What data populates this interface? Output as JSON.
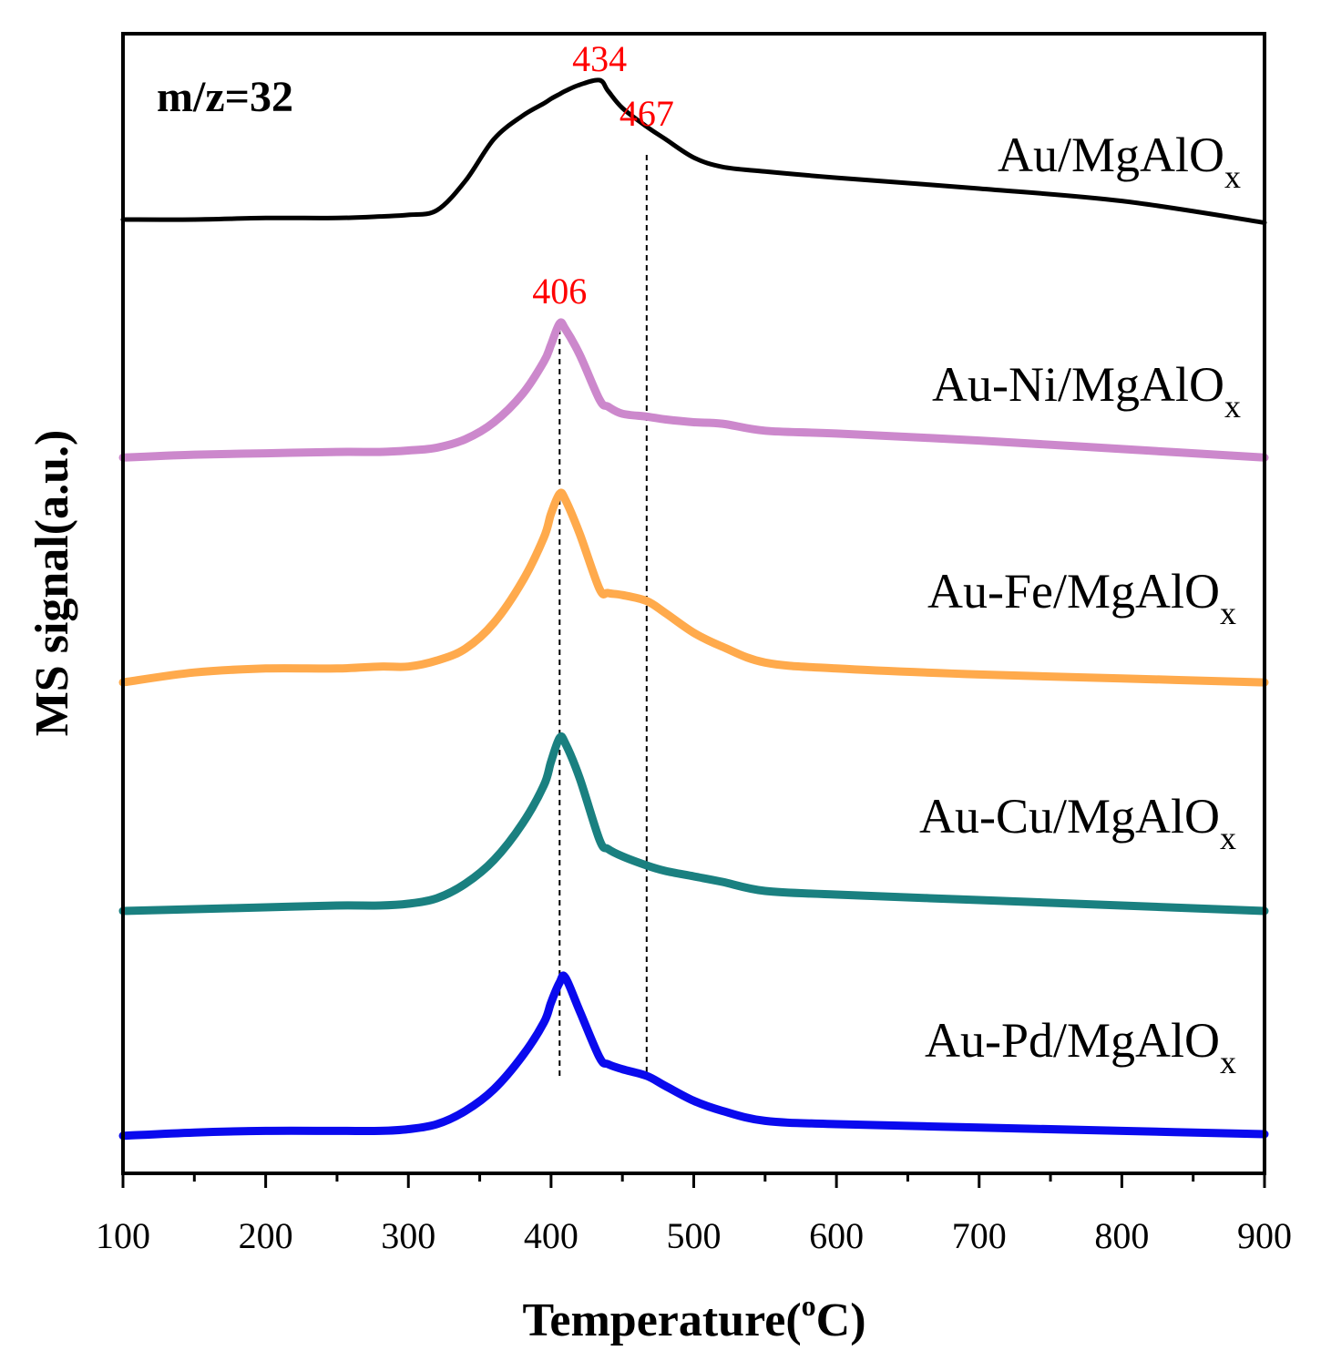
{
  "chart_data": {
    "type": "line",
    "panel_label": "m/z=32",
    "xlabel": {
      "main": "Temperature(",
      "sup": "o",
      "tail": "C)"
    },
    "ylabel": "MS signal(a.u.)",
    "xlim": [
      100,
      900
    ],
    "xticks": [
      "100",
      "200",
      "300",
      "400",
      "500",
      "600",
      "700",
      "800",
      "900"
    ],
    "x": [
      100,
      150,
      200,
      250,
      280,
      300,
      320,
      340,
      360,
      380,
      395,
      400,
      406,
      410,
      420,
      434,
      440,
      450,
      467,
      480,
      500,
      520,
      550,
      600,
      700,
      800,
      900
    ],
    "series": [
      {
        "name": "Au/MgAlO",
        "name_sub": "x",
        "color": "#000000",
        "offset": 4.0,
        "values": [
          0.1,
          0.1,
          0.11,
          0.11,
          0.12,
          0.13,
          0.16,
          0.35,
          0.62,
          0.77,
          0.85,
          0.88,
          0.91,
          0.93,
          0.97,
          1.0,
          0.93,
          0.82,
          0.7,
          0.62,
          0.5,
          0.44,
          0.41,
          0.37,
          0.3,
          0.22,
          0.08
        ]
      },
      {
        "name": "Au-Ni/MgAlO",
        "name_sub": "x",
        "color": "#CC88CC",
        "offset": 3.0,
        "values": [
          0.05,
          0.07,
          0.08,
          0.09,
          0.09,
          0.1,
          0.12,
          0.18,
          0.3,
          0.5,
          0.73,
          0.85,
          1.0,
          0.96,
          0.78,
          0.46,
          0.41,
          0.36,
          0.34,
          0.32,
          0.3,
          0.29,
          0.24,
          0.22,
          0.17,
          0.11,
          0.05
        ]
      },
      {
        "name": "Au-Fe/MgAlO",
        "name_sub": "x",
        "color": "#FFAA4C",
        "offset": 2.0,
        "values": [
          0.05,
          0.1,
          0.12,
          0.12,
          0.13,
          0.13,
          0.16,
          0.22,
          0.35,
          0.56,
          0.78,
          0.9,
          1.0,
          0.97,
          0.8,
          0.52,
          0.5,
          0.49,
          0.46,
          0.4,
          0.3,
          0.23,
          0.15,
          0.12,
          0.09,
          0.07,
          0.05
        ]
      },
      {
        "name": "Au-Cu/MgAlO",
        "name_sub": "x",
        "color": "#1A8080",
        "offset": 1.0,
        "values": [
          0.05,
          0.06,
          0.07,
          0.08,
          0.08,
          0.09,
          0.12,
          0.2,
          0.33,
          0.53,
          0.74,
          0.87,
          1.0,
          0.97,
          0.78,
          0.44,
          0.39,
          0.35,
          0.3,
          0.27,
          0.24,
          0.21,
          0.16,
          0.14,
          0.11,
          0.08,
          0.05
        ]
      },
      {
        "name": "Au-Pd/MgAlO",
        "name_sub": "x",
        "color": "#0A0AEE",
        "offset": 0.0,
        "values": [
          0.05,
          0.07,
          0.08,
          0.08,
          0.08,
          0.09,
          0.12,
          0.2,
          0.33,
          0.53,
          0.73,
          0.85,
          0.97,
          1.0,
          0.8,
          0.52,
          0.48,
          0.45,
          0.41,
          0.35,
          0.26,
          0.2,
          0.14,
          0.12,
          0.1,
          0.08,
          0.06
        ]
      }
    ],
    "annotations": [
      {
        "text": "434",
        "x": 434,
        "color": "#FF0000"
      },
      {
        "text": "467",
        "x": 467,
        "color": "#FF0000"
      },
      {
        "text": "406",
        "x": 406,
        "color": "#FF0000"
      }
    ],
    "reference_lines": [
      406,
      467
    ]
  }
}
